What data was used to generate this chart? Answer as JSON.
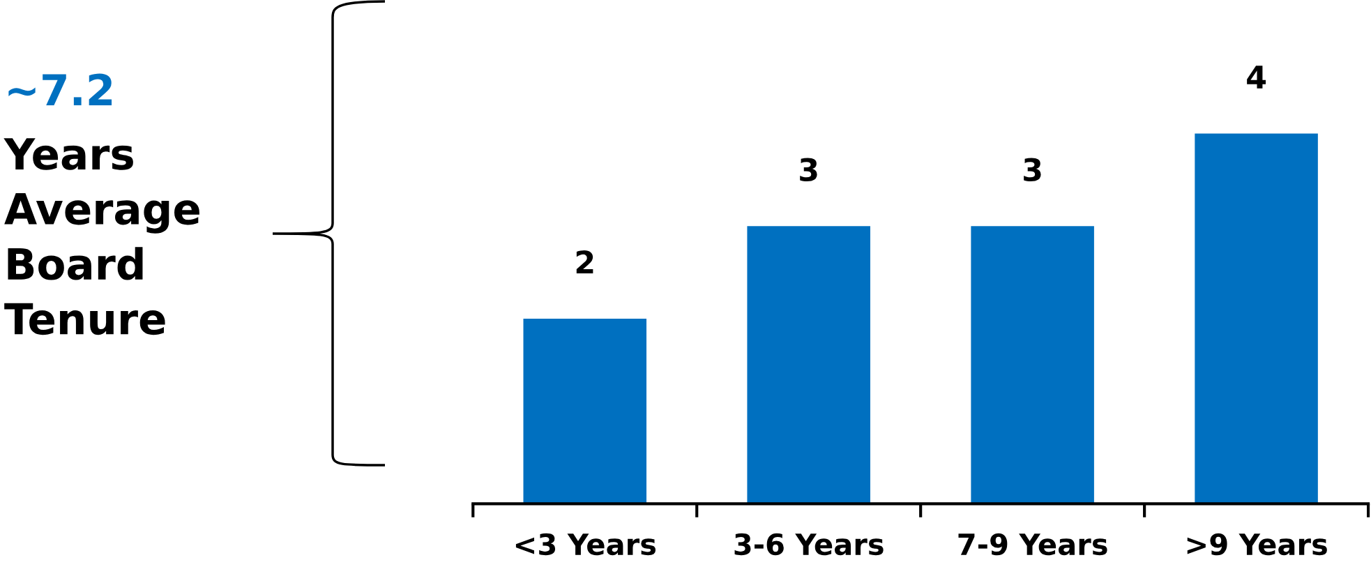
{
  "chart_data": {
    "type": "bar",
    "categories": [
      "<3 Years",
      "3-6 Years",
      "7-9 Years",
      ">9 Years"
    ],
    "values": [
      2,
      3,
      3,
      4
    ],
    "color": "#0070c0",
    "data_labels": true,
    "grid": false,
    "legend": false,
    "annotations": [
      "~7.2",
      "Years\nAverage\nBoard\nTenure"
    ]
  }
}
